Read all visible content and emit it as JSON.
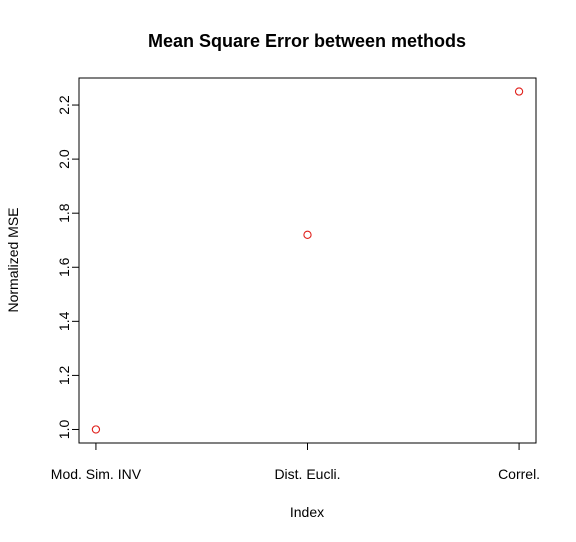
{
  "chart_data": {
    "type": "scatter",
    "title": "Mean Square Error between methods",
    "xlabel": "Index",
    "ylabel": "Normalized MSE",
    "categories": [
      "Mod. Sim. INV",
      "Dist. Eucli.",
      "Correl."
    ],
    "values": [
      1.0,
      1.72,
      2.25
    ],
    "yticks": [
      "1.0",
      "1.2",
      "1.4",
      "1.6",
      "1.8",
      "2.0",
      "2.2"
    ],
    "ylim": [
      0.95,
      2.3
    ],
    "marker": "open-circle",
    "point_color": "#e0201b",
    "grid": false,
    "legend": "none"
  }
}
